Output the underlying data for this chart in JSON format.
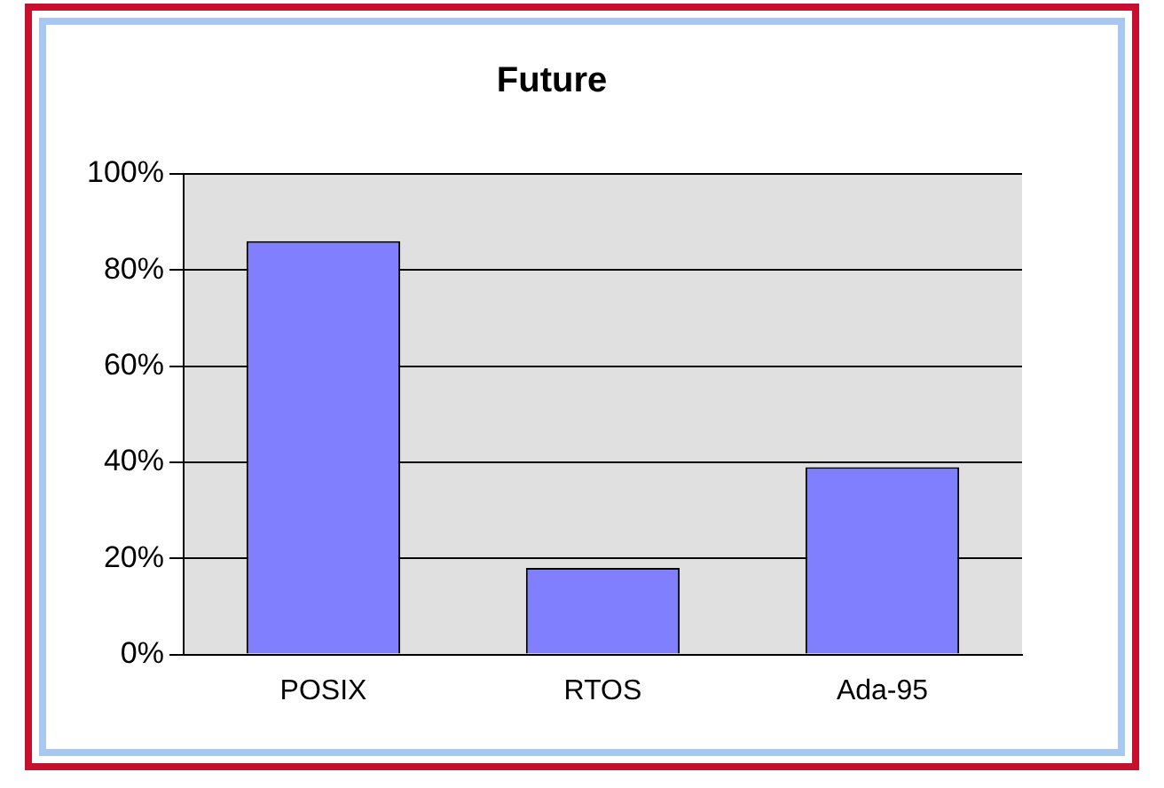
{
  "chart_data": {
    "type": "bar",
    "title": "Future",
    "categories": [
      "POSIX",
      "RTOS",
      "Ada-95"
    ],
    "values": [
      86,
      18,
      39
    ],
    "color": "#8080ff",
    "ylim": [
      0,
      100
    ],
    "yticks": [
      {
        "value": 0,
        "label": "0%"
      },
      {
        "value": 20,
        "label": "20%"
      },
      {
        "value": 40,
        "label": "40%"
      },
      {
        "value": 60,
        "label": "60%"
      },
      {
        "value": 80,
        "label": "80%"
      },
      {
        "value": 100,
        "label": "100%"
      }
    ],
    "grid": "y",
    "legend": false
  }
}
